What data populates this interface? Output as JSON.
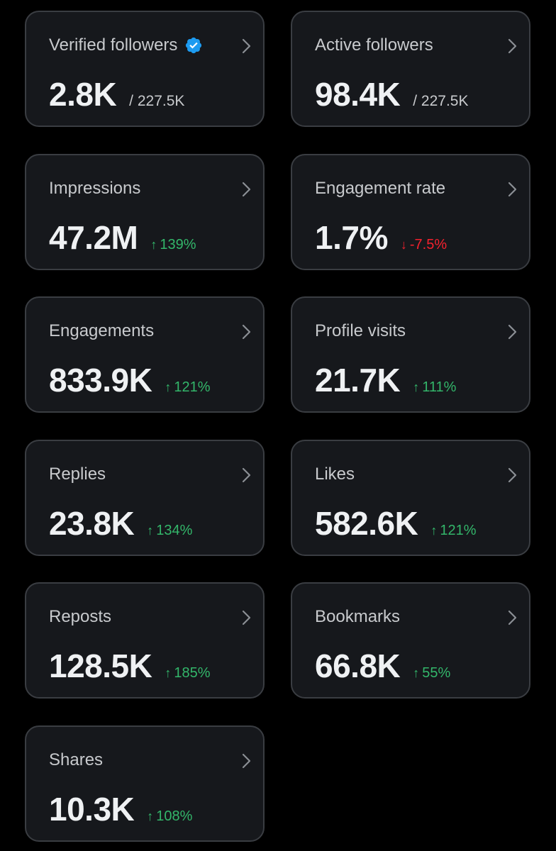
{
  "colors": {
    "background": "#000000",
    "card": "#16181c",
    "card_border": "#3a3d42",
    "label": "#c8cacd",
    "value": "#eff1f3",
    "positive": "#33b66a",
    "negative": "#f4212e",
    "verified": "#1d9bf0"
  },
  "icons": {
    "chevron": "chevron-right-icon",
    "verified": "verified-badge-icon",
    "up": "↑",
    "down": "↓"
  },
  "cards": [
    {
      "label": "Verified followers",
      "value": "2.8K",
      "sub": "/ 227.5K"
    },
    {
      "label": "Active followers",
      "value": "98.4K",
      "sub": "/ 227.5K"
    },
    {
      "label": "Impressions",
      "value": "47.2M",
      "change": "139%",
      "direction": "up"
    },
    {
      "label": "Engagement rate",
      "value": "1.7%",
      "change": "-7.5%",
      "direction": "down"
    },
    {
      "label": "Engagements",
      "value": "833.9K",
      "change": "121%",
      "direction": "up"
    },
    {
      "label": "Profile visits",
      "value": "21.7K",
      "change": "111%",
      "direction": "up"
    },
    {
      "label": "Replies",
      "value": "23.8K",
      "change": "134%",
      "direction": "up"
    },
    {
      "label": "Likes",
      "value": "582.6K",
      "change": "121%",
      "direction": "up"
    },
    {
      "label": "Reposts",
      "value": "128.5K",
      "change": "185%",
      "direction": "up"
    },
    {
      "label": "Bookmarks",
      "value": "66.8K",
      "change": "55%",
      "direction": "up"
    },
    {
      "label": "Shares",
      "value": "10.3K",
      "change": "108%",
      "direction": "up"
    }
  ]
}
